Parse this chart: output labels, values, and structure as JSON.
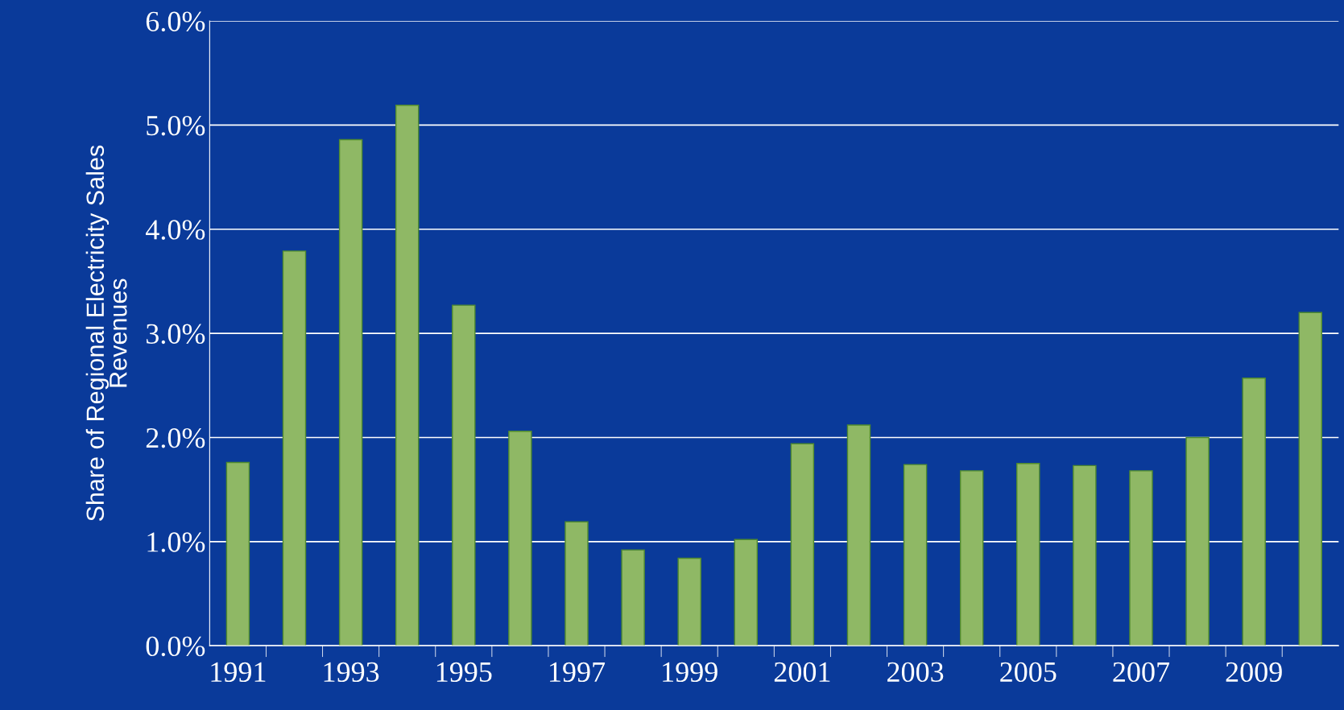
{
  "chart_data": {
    "type": "bar",
    "ylabel": "Share of Regional Electricity Sales\nRevenues",
    "categories": [
      "1991",
      null,
      "1993",
      null,
      "1995",
      null,
      "1997",
      null,
      "1999",
      null,
      "2001",
      null,
      "2003",
      null,
      "2005",
      null,
      "2007",
      null,
      "2009",
      null
    ],
    "values": [
      1.76,
      3.79,
      4.86,
      5.19,
      3.27,
      2.06,
      1.19,
      0.92,
      0.84,
      1.02,
      1.94,
      2.12,
      1.74,
      1.68,
      1.75,
      1.73,
      1.68,
      2.0,
      2.57,
      3.2
    ],
    "color": "#8fb865",
    "ylim": [
      0,
      6
    ],
    "yticks": [
      {
        "value": 0,
        "label": "0.0%"
      },
      {
        "value": 1,
        "label": "1.0%"
      },
      {
        "value": 2,
        "label": "2.0%"
      },
      {
        "value": 3,
        "label": "3.0%"
      },
      {
        "value": 4,
        "label": "4.0%"
      },
      {
        "value": 5,
        "label": "5.0%"
      },
      {
        "value": 6,
        "label": "6.0%"
      }
    ],
    "grid": "y",
    "legend": false
  }
}
